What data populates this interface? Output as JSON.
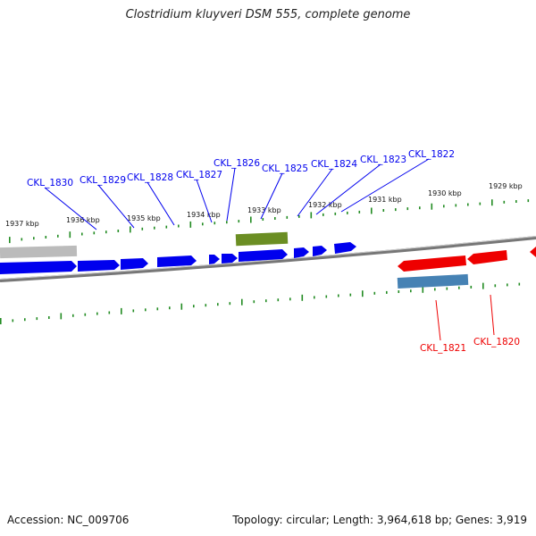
{
  "title": "Clostridium kluyveri DSM 555, complete genome",
  "footer": {
    "accession": "Accession: NC_009706",
    "summary": "Topology: circular; Length: 3,964,618 bp; Genes: 3,919"
  },
  "kbp_labels": [
    "1937 kbp",
    "1936 kbp",
    "1935 kbp",
    "1934 kbp",
    "1933 kbp",
    "1932 kbp",
    "1931 kbp",
    "1930 kbp",
    "1929 kbp"
  ],
  "genes_forward": [
    "CKL_1830",
    "CKL_1829",
    "CKL_1828",
    "CKL_1827",
    "CKL_1826",
    "CKL_1825",
    "CKL_1824",
    "CKL_1823",
    "CKL_1822"
  ],
  "genes_reverse": [
    "CKL_1821",
    "CKL_1820"
  ],
  "colors": {
    "forward_gene": "#0000ee",
    "reverse_gene": "#ee0000",
    "rna_feature": "#6b8e23",
    "pseudo_feature": "#4682b4",
    "other_feature": "#bbbbbb",
    "ticks": "#228b22",
    "backbone": "#777777"
  }
}
